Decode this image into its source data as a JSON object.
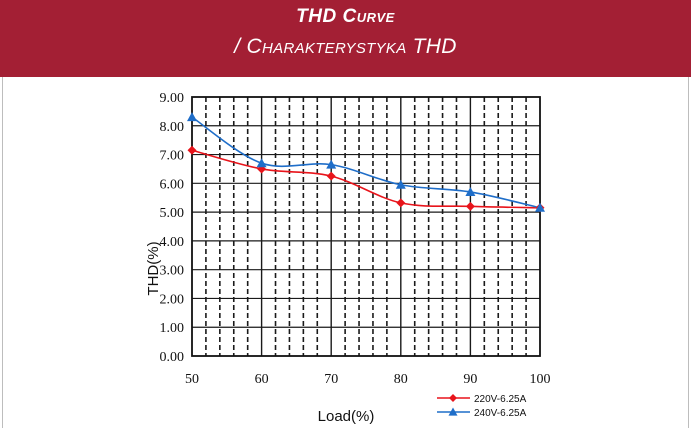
{
  "header": {
    "title": "THD Curve",
    "subtitle": "/ Charakterystyka THD"
  },
  "colors": {
    "banner": "#a31f34",
    "series_220": "#e8141b",
    "series_240": "#1f6ec9"
  },
  "chart_data": {
    "type": "line",
    "title": "",
    "xlabel": "Load(%)",
    "ylabel": "THD(%)",
    "xlim": [
      50,
      100
    ],
    "ylim": [
      0,
      9
    ],
    "x": [
      50,
      60,
      70,
      80,
      90,
      100
    ],
    "x_ticks": [
      "50",
      "60",
      "70",
      "80",
      "90",
      "100"
    ],
    "y_ticks": [
      "0.00",
      "1.00",
      "2.00",
      "3.00",
      "4.00",
      "5.00",
      "6.00",
      "7.00",
      "8.00",
      "9.00"
    ],
    "grid": "vertical dashed minor lines every 2%, solid major lines every 10% and every 1.00",
    "legend_position": "bottom-right",
    "series": [
      {
        "name": "220V-6.25A",
        "marker": "diamond",
        "values": [
          7.15,
          6.5,
          6.25,
          5.32,
          5.2,
          5.15
        ]
      },
      {
        "name": "240V-6.25A",
        "marker": "triangle",
        "values": [
          8.3,
          6.7,
          6.65,
          5.95,
          5.7,
          5.15
        ]
      }
    ]
  }
}
